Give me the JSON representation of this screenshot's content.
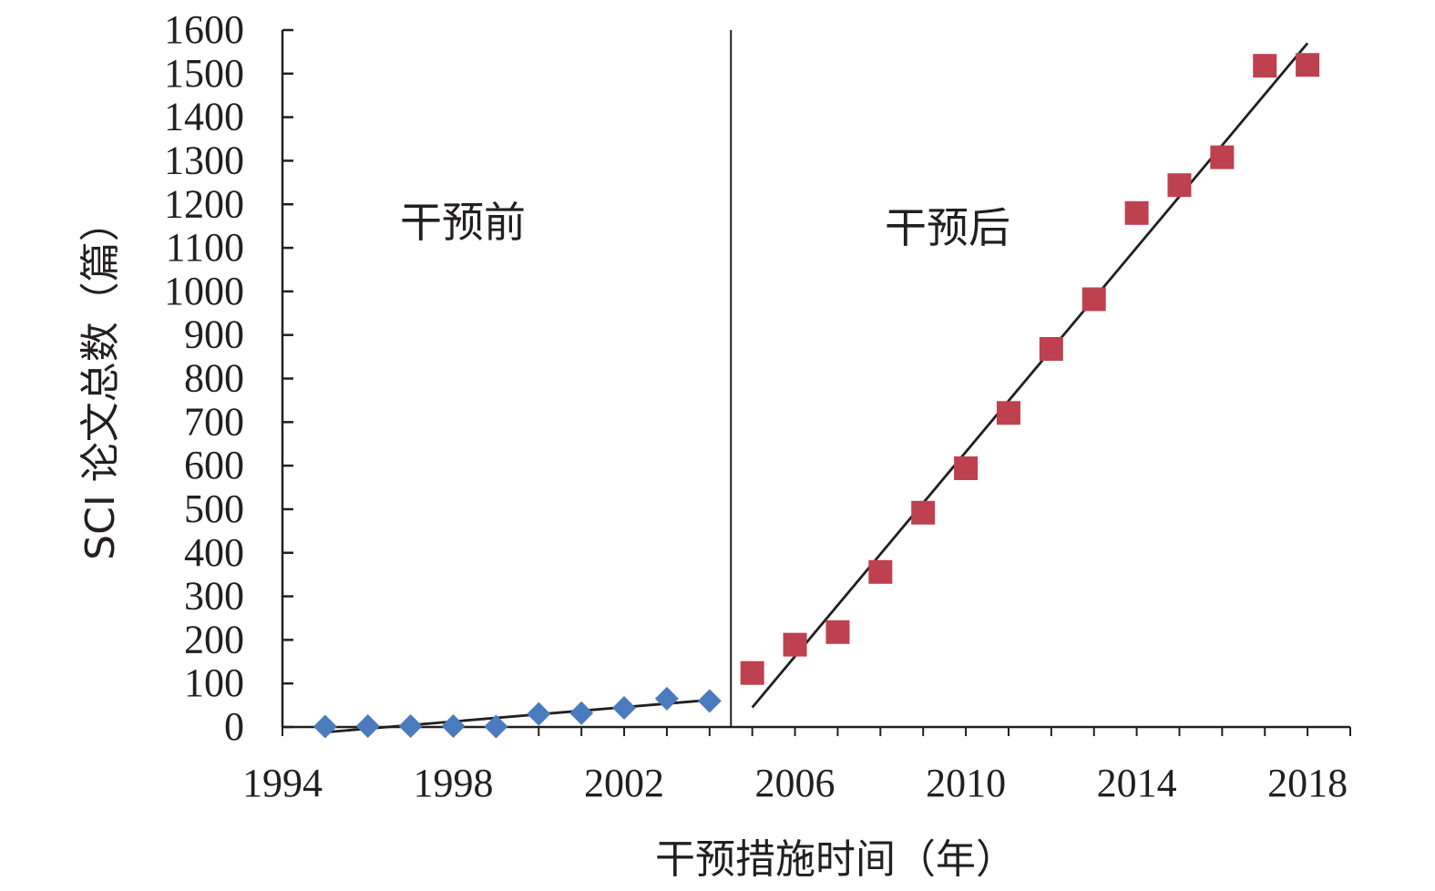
{
  "chart_data": {
    "type": "scatter",
    "title": "",
    "xlabel": "干预措施时间（年）",
    "ylabel": "SCI 论文总数（篇）",
    "xlim": [
      1994,
      2019
    ],
    "ylim": [
      0,
      1600
    ],
    "x_ticks": [
      1994,
      1998,
      2002,
      2006,
      2010,
      2014,
      2018
    ],
    "y_ticks": [
      0,
      100,
      200,
      300,
      400,
      500,
      600,
      700,
      800,
      900,
      1000,
      1100,
      1200,
      1300,
      1400,
      1500,
      1600
    ],
    "grid": false,
    "legend": "none",
    "intervention_x": 2004.5,
    "region_labels": {
      "before": "干预前",
      "after": "干预后"
    },
    "series": [
      {
        "marker": "diamond",
        "color": "#4a7bbf",
        "points": [
          [
            1995,
            1
          ],
          [
            1996,
            2
          ],
          [
            1997,
            2
          ],
          [
            1998,
            2
          ],
          [
            1999,
            1
          ],
          [
            2000,
            30
          ],
          [
            2001,
            32
          ],
          [
            2002,
            44
          ],
          [
            2003,
            65
          ],
          [
            2004,
            60
          ]
        ],
        "trend": [
          [
            1995,
            -12
          ],
          [
            2004,
            62
          ]
        ]
      },
      {
        "marker": "square",
        "color": "#be4150",
        "points": [
          [
            2005,
            124
          ],
          [
            2006,
            189
          ],
          [
            2007,
            218
          ],
          [
            2008,
            356
          ],
          [
            2009,
            492
          ],
          [
            2010,
            594
          ],
          [
            2011,
            721
          ],
          [
            2012,
            868
          ],
          [
            2013,
            982
          ],
          [
            2014,
            1180
          ],
          [
            2015,
            1244
          ],
          [
            2016,
            1308
          ],
          [
            2017,
            1518
          ],
          [
            2018,
            1520
          ]
        ],
        "trend": [
          [
            2005,
            45
          ],
          [
            2018,
            1570
          ]
        ]
      }
    ]
  }
}
